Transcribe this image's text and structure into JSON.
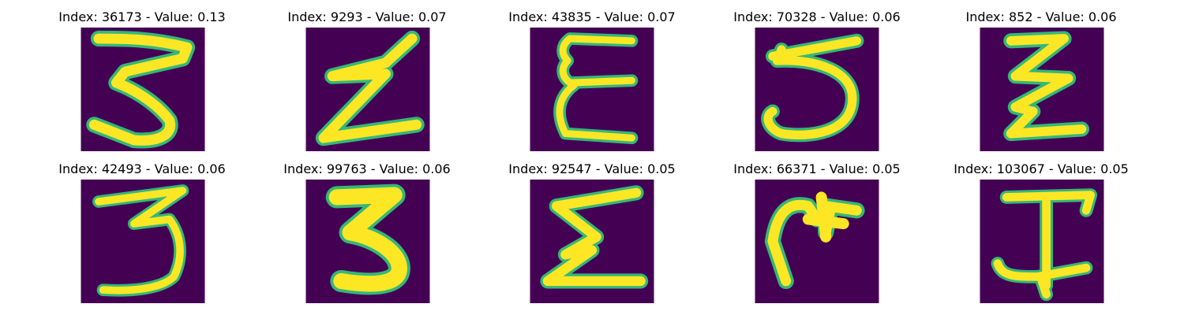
{
  "colors": {
    "background": "#440154",
    "stroke_core": "#fde725",
    "stroke_halo": "#35b779"
  },
  "panels": [
    {
      "title": "Index: 36173 - Value: 0.13",
      "index": "36173",
      "value": "0.13",
      "glyph": "three-like stroke"
    },
    {
      "title": "Index: 9293 - Value: 0.07",
      "index": "9293",
      "value": "0.07",
      "glyph": "z-like stroke"
    },
    {
      "title": "Index: 43835 - Value: 0.07",
      "index": "43835",
      "value": "0.07",
      "glyph": "epsilon-like stroke"
    },
    {
      "title": "Index: 70328 - Value: 0.06",
      "index": "70328",
      "value": "0.06",
      "glyph": "five-like stroke"
    },
    {
      "title": "Index: 852 - Value: 0.06",
      "index": "852",
      "value": "0.06",
      "glyph": "double-z stroke"
    },
    {
      "title": "Index: 42493 - Value: 0.06",
      "index": "42493",
      "value": "0.06",
      "glyph": "three-like stroke"
    },
    {
      "title": "Index: 99763 - Value: 0.06",
      "index": "99763",
      "value": "0.06",
      "glyph": "three-like stroke"
    },
    {
      "title": "Index: 92547 - Value: 0.05",
      "index": "92547",
      "value": "0.05",
      "glyph": "sigma-like stroke"
    },
    {
      "title": "Index: 66371 - Value: 0.05",
      "index": "66371",
      "value": "0.05",
      "glyph": "m-like stroke"
    },
    {
      "title": "Index: 103067 - Value: 0.05",
      "index": "103067",
      "value": "0.05",
      "glyph": "i-beam stroke"
    }
  ]
}
